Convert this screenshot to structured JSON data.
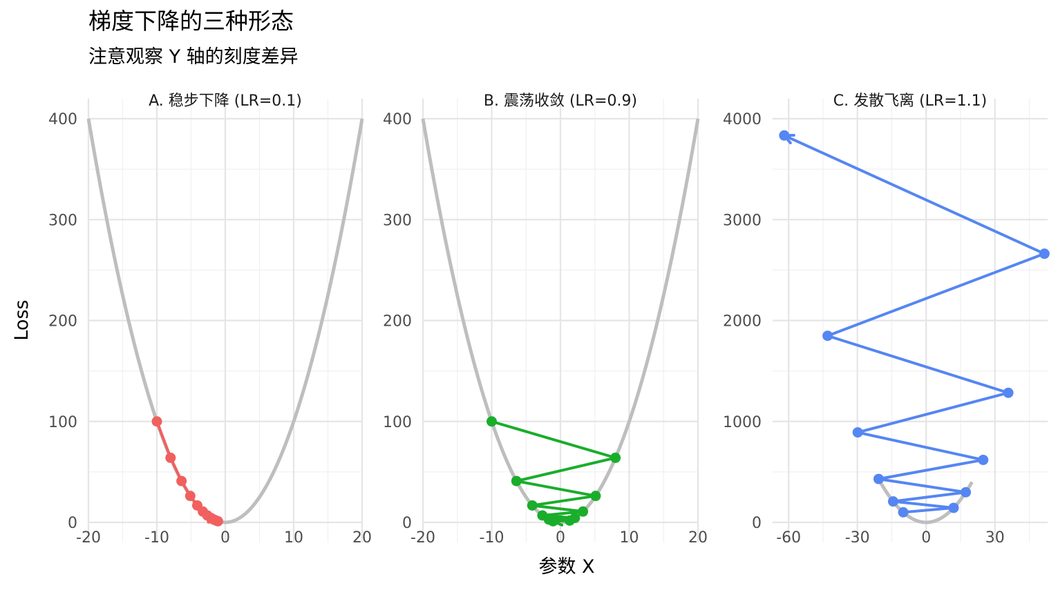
{
  "title": "梯度下降的三种形态",
  "subtitle": "注意观察 Y 轴的刻度差异",
  "xlabel": "参数 X",
  "ylabel": "Loss",
  "colors": {
    "curve": "#bebebe",
    "panel_a": "#f0605f",
    "panel_b": "#1aad2c",
    "panel_c": "#5586f2",
    "grid": "#e5e5e5"
  },
  "chart_data": [
    {
      "type": "line",
      "panel_label": "A. 稳步下降 (LR=0.1)",
      "loss_function": "x^2",
      "xlim": [
        -20,
        20
      ],
      "ylim": [
        0,
        400
      ],
      "x_ticks": [
        -20,
        -10,
        0,
        10,
        20
      ],
      "y_ticks": [
        0,
        100,
        200,
        300,
        400
      ],
      "curve_x_range": [
        -20,
        20
      ],
      "series": [
        {
          "x": [
            -10,
            -8,
            -6.4,
            -5.12,
            -4.096,
            -3.277,
            -2.621,
            -2.097,
            -1.678,
            -1.342,
            -1.074
          ],
          "y": [
            100,
            64,
            40.96,
            26.21,
            16.78,
            10.74,
            6.87,
            4.4,
            2.81,
            1.8,
            1.15
          ]
        }
      ]
    },
    {
      "type": "line",
      "panel_label": "B. 震荡收敛 (LR=0.9)",
      "loss_function": "x^2",
      "xlim": [
        -20,
        20
      ],
      "ylim": [
        0,
        400
      ],
      "x_ticks": [
        -20,
        -10,
        0,
        10,
        20
      ],
      "y_ticks": [
        0,
        100,
        200,
        300,
        400
      ],
      "curve_x_range": [
        -20,
        20
      ],
      "series": [
        {
          "x": [
            -10,
            8,
            -6.4,
            5.12,
            -4.096,
            3.277,
            -2.621,
            2.097,
            -1.678,
            1.342,
            -1.074
          ],
          "y": [
            100,
            64,
            40.96,
            26.21,
            16.78,
            10.74,
            6.87,
            4.4,
            2.81,
            1.8,
            1.15
          ]
        }
      ]
    },
    {
      "type": "line",
      "panel_label": "C. 发散飞离 (LR=1.1)",
      "loss_function": "x^2",
      "xlim": [
        -67,
        53
      ],
      "ylim": [
        0,
        4000
      ],
      "x_ticks": [
        -60,
        -30,
        0,
        30
      ],
      "y_ticks": [
        0,
        1000,
        2000,
        3000,
        4000
      ],
      "curve_x_range": [
        -20,
        20
      ],
      "series": [
        {
          "x": [
            -10,
            12,
            -14.4,
            17.28,
            -20.74,
            24.88,
            -29.86,
            35.83,
            -43,
            51.6,
            -61.92
          ],
          "y": [
            100,
            144,
            207.4,
            298.6,
            430,
            619.2,
            891.6,
            1283.9,
            1848.8,
            2662.3,
            3833.8
          ]
        }
      ]
    }
  ]
}
